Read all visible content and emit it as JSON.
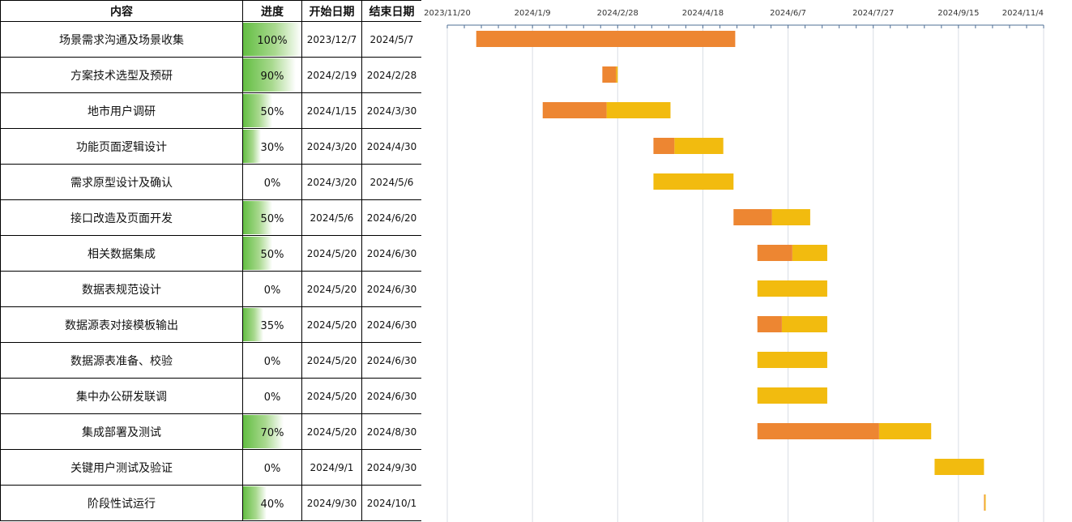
{
  "table": {
    "headers": {
      "name": "内容",
      "progress": "进度",
      "start": "开始日期",
      "end": "结束日期"
    },
    "rows": [
      {
        "name": "场景需求沟通及场景收集",
        "progress": "100%",
        "start": "2023/12/7",
        "end": "2024/5/7"
      },
      {
        "name": "方案技术选型及预研",
        "progress": "90%",
        "start": "2024/2/19",
        "end": "2024/2/28"
      },
      {
        "name": "地市用户调研",
        "progress": "50%",
        "start": "2024/1/15",
        "end": "2024/3/30"
      },
      {
        "name": "功能页面逻辑设计",
        "progress": "30%",
        "start": "2024/3/20",
        "end": "2024/4/30"
      },
      {
        "name": "需求原型设计及确认",
        "progress": "0%",
        "start": "2024/3/20",
        "end": "2024/5/6"
      },
      {
        "name": "接口改造及页面开发",
        "progress": "50%",
        "start": "2024/5/6",
        "end": "2024/6/20"
      },
      {
        "name": "相关数据集成",
        "progress": "50%",
        "start": "2024/5/20",
        "end": "2024/6/30"
      },
      {
        "name": "数据表规范设计",
        "progress": "0%",
        "start": "2024/5/20",
        "end": "2024/6/30"
      },
      {
        "name": "数据源表对接模板输出",
        "progress": "35%",
        "start": "2024/5/20",
        "end": "2024/6/30"
      },
      {
        "name": "数据源表准备、校验",
        "progress": "0%",
        "start": "2024/5/20",
        "end": "2024/6/30"
      },
      {
        "name": "集中办公研发联调",
        "progress": "0%",
        "start": "2024/5/20",
        "end": "2024/6/30"
      },
      {
        "name": "集成部署及测试",
        "progress": "70%",
        "start": "2024/5/20",
        "end": "2024/8/30"
      },
      {
        "name": "关键用户测试及验证",
        "progress": "0%",
        "start": "2024/9/1",
        "end": "2024/9/30"
      },
      {
        "name": "阶段性试运行",
        "progress": "40%",
        "start": "2024/9/30",
        "end": "2024/10/1"
      }
    ]
  },
  "chart_data": {
    "type": "bar",
    "orientation": "horizontal-stacked",
    "x_axis_ticks": [
      "2023/11/20",
      "2024/1/9",
      "2024/2/28",
      "2024/4/18",
      "2024/6/7",
      "2024/7/27",
      "2024/9/15",
      "2024/11/4"
    ],
    "xlim": [
      "2023/11/20",
      "2024/11/4"
    ],
    "grid": true,
    "series": [
      {
        "role": "completed",
        "color": "#ed8632"
      },
      {
        "role": "remaining",
        "color": "#f2bb0f"
      }
    ],
    "tasks": [
      {
        "start": "2023/12/7",
        "end": "2024/5/7",
        "completed_fraction": 1.0
      },
      {
        "start": "2024/2/19",
        "end": "2024/2/28",
        "completed_fraction": 0.9
      },
      {
        "start": "2024/1/15",
        "end": "2024/3/30",
        "completed_fraction": 0.5
      },
      {
        "start": "2024/3/20",
        "end": "2024/4/30",
        "completed_fraction": 0.3
      },
      {
        "start": "2024/3/20",
        "end": "2024/5/6",
        "completed_fraction": 0.0
      },
      {
        "start": "2024/5/6",
        "end": "2024/6/20",
        "completed_fraction": 0.5
      },
      {
        "start": "2024/5/20",
        "end": "2024/6/30",
        "completed_fraction": 0.5
      },
      {
        "start": "2024/5/20",
        "end": "2024/6/30",
        "completed_fraction": 0.0
      },
      {
        "start": "2024/5/20",
        "end": "2024/6/30",
        "completed_fraction": 0.35
      },
      {
        "start": "2024/5/20",
        "end": "2024/6/30",
        "completed_fraction": 0.0
      },
      {
        "start": "2024/5/20",
        "end": "2024/6/30",
        "completed_fraction": 0.0
      },
      {
        "start": "2024/5/20",
        "end": "2024/8/30",
        "completed_fraction": 0.7
      },
      {
        "start": "2024/9/1",
        "end": "2024/9/30",
        "completed_fraction": 0.0
      },
      {
        "start": "2024/9/30",
        "end": "2024/10/1",
        "completed_fraction": 0.4
      }
    ]
  }
}
